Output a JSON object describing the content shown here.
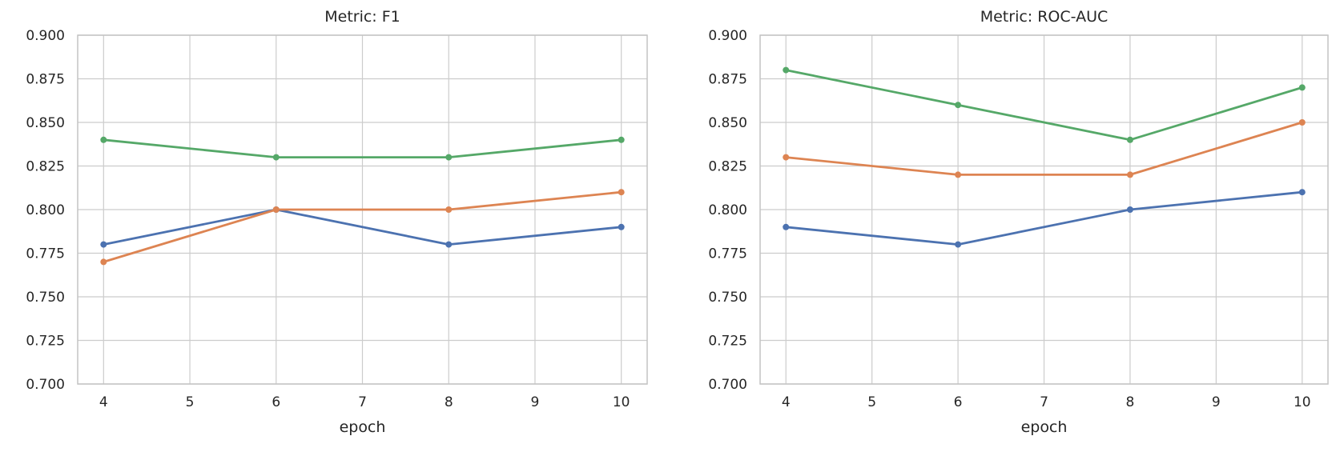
{
  "page": {
    "background": "#ffffff",
    "text_color": "#262626",
    "grid_color": "#cccccc",
    "border_color": "#c3c3c3"
  },
  "chart_data": [
    {
      "type": "line",
      "title": "Metric: F1",
      "xlabel": "epoch",
      "ylabel": "",
      "x": [
        4,
        6,
        8,
        10
      ],
      "xticks": [
        4,
        5,
        6,
        7,
        8,
        9,
        10
      ],
      "ytick_labels": [
        "0.700",
        "0.725",
        "0.750",
        "0.775",
        "0.800",
        "0.825",
        "0.850",
        "0.875",
        "0.900"
      ],
      "yticks": [
        0.7,
        0.725,
        0.75,
        0.775,
        0.8,
        0.825,
        0.85,
        0.875,
        0.9
      ],
      "xlim": [
        3.7,
        10.3
      ],
      "ylim": [
        0.7,
        0.9
      ],
      "grid": true,
      "legend": "none",
      "series": [
        {
          "name": "series-blue",
          "color": "#4C72B0",
          "values": [
            0.78,
            0.8,
            0.78,
            0.79
          ]
        },
        {
          "name": "series-orange",
          "color": "#DD8452",
          "values": [
            0.77,
            0.8,
            0.8,
            0.81
          ]
        },
        {
          "name": "series-green",
          "color": "#55A868",
          "values": [
            0.84,
            0.83,
            0.83,
            0.84
          ]
        }
      ]
    },
    {
      "type": "line",
      "title": "Metric: ROC-AUC",
      "xlabel": "epoch",
      "ylabel": "",
      "x": [
        4,
        6,
        8,
        10
      ],
      "xticks": [
        4,
        5,
        6,
        7,
        8,
        9,
        10
      ],
      "ytick_labels": [
        "0.700",
        "0.725",
        "0.750",
        "0.775",
        "0.800",
        "0.825",
        "0.850",
        "0.875",
        "0.900"
      ],
      "yticks": [
        0.7,
        0.725,
        0.75,
        0.775,
        0.8,
        0.825,
        0.85,
        0.875,
        0.9
      ],
      "xlim": [
        3.7,
        10.3
      ],
      "ylim": [
        0.7,
        0.9
      ],
      "grid": true,
      "legend": "none",
      "series": [
        {
          "name": "series-blue",
          "color": "#4C72B0",
          "values": [
            0.79,
            0.78,
            0.8,
            0.81
          ]
        },
        {
          "name": "series-orange",
          "color": "#DD8452",
          "values": [
            0.83,
            0.82,
            0.82,
            0.85
          ]
        },
        {
          "name": "series-green",
          "color": "#55A868",
          "values": [
            0.88,
            0.86,
            0.84,
            0.87
          ]
        }
      ]
    }
  ]
}
